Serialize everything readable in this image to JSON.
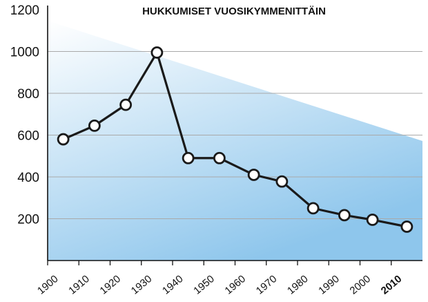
{
  "chart_data": {
    "type": "line",
    "title": "HUKKUMISET VUOSIKYMMENITTÄIN",
    "xlabel": "",
    "ylabel": "",
    "ylim": [
      0,
      1200
    ],
    "y_ticks": [
      200,
      400,
      600,
      800,
      1000,
      1200
    ],
    "x_tick_labels": [
      "1900",
      "1910",
      "1920",
      "1930",
      "1940",
      "1950",
      "1960",
      "1970",
      "1980",
      "1990",
      "2000",
      "2010"
    ],
    "highlighted_tick": "2010",
    "grid": true,
    "x": [
      1905,
      1915,
      1925,
      1935,
      1945,
      1955,
      1966,
      1975,
      1985,
      1995,
      2004,
      2015
    ],
    "values": [
      580,
      645,
      745,
      995,
      490,
      490,
      410,
      378,
      250,
      217,
      195,
      162
    ],
    "colors": {
      "line": "#1a1a1a",
      "marker_fill": "#ffffff",
      "background_gradient_light": "#ffffff",
      "background_gradient_dark": "#8ec6ec",
      "gridline": "#a9a9a9"
    }
  }
}
